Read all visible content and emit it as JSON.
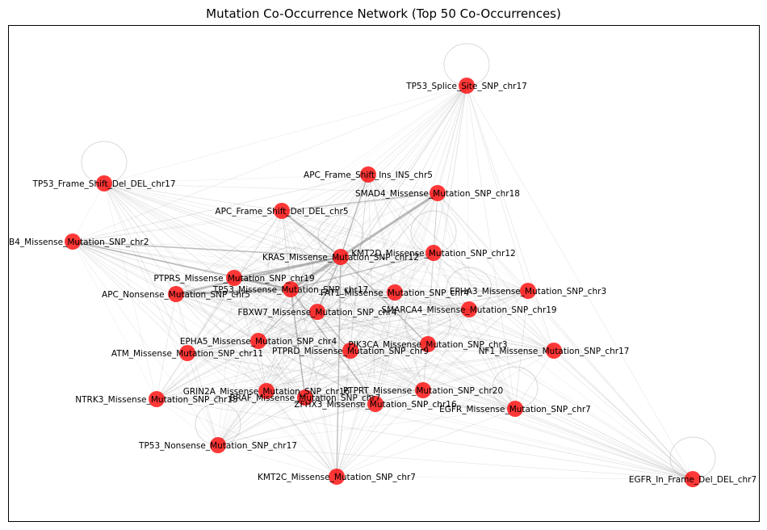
{
  "title": "Mutation Co-Occurrence Network (Top 50 Co-Occurrences)",
  "node_color": "#ff0000",
  "edge_color": "#8a8a8a",
  "nodes": [
    {
      "id": "TP53_Splice_Site_SNP_chr17",
      "label": "TP53_Splice_Site_SNP_chr17"
    },
    {
      "id": "TP53_Frame_Shift_Del_DEL_chr17",
      "label": "TP53_Frame_Shift_Del_DEL_chr17"
    },
    {
      "id": "APC_Frame_Shift_Ins_INS_chr5",
      "label": "APC_Frame_Shift_Ins_INS_chr5"
    },
    {
      "id": "SMAD4_Missense_Mutation_SNP_chr18",
      "label": "SMAD4_Missense_Mutation_SNP_chr18"
    },
    {
      "id": "APC_Frame_Shift_Del_DEL_chr5",
      "label": "APC_Frame_Shift_Del_DEL_chr5"
    },
    {
      "id": "B4_Missense_Mutation_SNP_chr2",
      "label": "B4_Missense_Mutation_SNP_chr2"
    },
    {
      "id": "KMT2D_Missense_Mutation_SNP_chr12",
      "label": "KMT2D_Missense_Mutation_SNP_chr12"
    },
    {
      "id": "KRAS_Missense_Mutation_SNP_chr12",
      "label": "KRAS_Missense_Mutation_SNP_chr12"
    },
    {
      "id": "PTPRS_Missense_Mutation_SNP_chr19",
      "label": "PTPRS_Missense_Mutation_SNP_chr19"
    },
    {
      "id": "TP53_Missense_Mutation_SNP_chr17",
      "label": "TP53_Missense_Mutation_SNP_chr17"
    },
    {
      "id": "APC_Nonsense_Mutation_SNP_chr5",
      "label": "APC_Nonsense_Mutation_SNP_chr5"
    },
    {
      "id": "FAT1_Missense_Mutation_SNP_chr4",
      "label": "FAT1_Missense_Mutation_SNP_chr4"
    },
    {
      "id": "EPHA3_Missense_Mutation_SNP_chr3",
      "label": "EPHA3_Missense_Mutation_SNP_chr3"
    },
    {
      "id": "FBXW7_Missense_Mutation_SNP_chr4",
      "label": "FBXW7_Missense_Mutation_SNP_chr4"
    },
    {
      "id": "SMARCA4_Missense_Mutation_SNP_chr19",
      "label": "SMARCA4_Missense_Mutation_SNP_chr19"
    },
    {
      "id": "EPHA5_Missense_Mutation_SNP_chr4",
      "label": "EPHA5_Missense_Mutation_SNP_chr4"
    },
    {
      "id": "PIK3CA_Missense_Mutation_SNP_chr3",
      "label": "PIK3CA_Missense_Mutation_SNP_chr3"
    },
    {
      "id": "ATM_Missense_Mutation_SNP_chr11",
      "label": "ATM_Missense_Mutation_SNP_chr11"
    },
    {
      "id": "PTPRD_Missense_Mutation_SNP_chr9",
      "label": "PTPRD_Missense_Mutation_SNP_chr9"
    },
    {
      "id": "NF1_Missense_Mutation_SNP_chr17",
      "label": "NF1_Missense_Mutation_SNP_chr17"
    },
    {
      "id": "PTPRT_Missense_Mutation_SNP_chr20",
      "label": "PTPRT_Missense_Mutation_SNP_chr20"
    },
    {
      "id": "GRIN2A_Missense_Mutation_SNP_chr16",
      "label": "GRIN2A_Missense_Mutation_SNP_chr16"
    },
    {
      "id": "NTRK3_Missense_Mutation_SNP_chr15",
      "label": "NTRK3_Missense_Mutation_SNP_chr15"
    },
    {
      "id": "BRAF_Missense_Mutation_SNP_chr7",
      "label": "BRAF_Missense_Mutation_SNP_chr7"
    },
    {
      "id": "ZFHX3_Missense_Mutation_SNP_chr16",
      "label": "ZFHX3_Missense_Mutation_SNP_chr16"
    },
    {
      "id": "EGFR_Missense_Mutation_SNP_chr7",
      "label": "EGFR_Missense_Mutation_SNP_chr7"
    },
    {
      "id": "TP53_Nonsense_Mutation_SNP_chr17",
      "label": "TP53_Nonsense_Mutation_SNP_chr17"
    },
    {
      "id": "KMT2C_Missense_Mutation_SNP_chr7",
      "label": "KMT2C_Missense_Mutation_SNP_chr7"
    },
    {
      "id": "EGFR_In_Frame_Del_DEL_chr7",
      "label": "EGFR_In_Frame_Del_DEL_chr7"
    }
  ],
  "self_loops": [
    "TP53_Splice_Site_SNP_chr17",
    "TP53_Frame_Shift_Del_DEL_chr17",
    "KMT2D_Missense_Mutation_SNP_chr12",
    "KRAS_Missense_Mutation_SNP_chr12",
    "TP53_Missense_Mutation_SNP_chr17",
    "PIK3CA_Missense_Mutation_SNP_chr3",
    "EGFR_Missense_Mutation_SNP_chr7",
    "TP53_Nonsense_Mutation_SNP_chr17",
    "EGFR_In_Frame_Del_DEL_chr7",
    "FBXW7_Missense_Mutation_SNP_chr4",
    "SMARCA4_Missense_Mutation_SNP_chr19"
  ],
  "strong_edges": [
    [
      "KRAS_Missense_Mutation_SNP_chr12",
      "TP53_Missense_Mutation_SNP_chr17",
      4.0
    ],
    [
      "KRAS_Missense_Mutation_SNP_chr12",
      "SMAD4_Missense_Mutation_SNP_chr18",
      3.0
    ],
    [
      "TP53_Missense_Mutation_SNP_chr17",
      "APC_Nonsense_Mutation_SNP_chr5",
      3.0
    ],
    [
      "KRAS_Missense_Mutation_SNP_chr12",
      "APC_Nonsense_Mutation_SNP_chr5",
      2.5
    ],
    [
      "TP53_Missense_Mutation_SNP_chr17",
      "PTPRS_Missense_Mutation_SNP_chr19",
      2.0
    ],
    [
      "KRAS_Missense_Mutation_SNP_chr12",
      "PTPRS_Missense_Mutation_SNP_chr19",
      2.0
    ],
    [
      "KRAS_Missense_Mutation_SNP_chr12",
      "APC_Frame_Shift_Del_DEL_chr5",
      2.0
    ],
    [
      "KRAS_Missense_Mutation_SNP_chr12",
      "FBXW7_Missense_Mutation_SNP_chr4",
      1.8
    ],
    [
      "TP53_Missense_Mutation_SNP_chr17",
      "B4_Missense_Mutation_SNP_chr2",
      1.6
    ],
    [
      "KRAS_Missense_Mutation_SNP_chr12",
      "B4_Missense_Mutation_SNP_chr2",
      1.6
    ],
    [
      "KRAS_Missense_Mutation_SNP_chr12",
      "APC_Frame_Shift_Ins_INS_chr5",
      1.5
    ],
    [
      "TP53_Missense_Mutation_SNP_chr17",
      "ZFHX3_Missense_Mutation_SNP_chr16",
      1.5
    ],
    [
      "KRAS_Missense_Mutation_SNP_chr12",
      "PIK3CA_Missense_Mutation_SNP_chr3",
      1.5
    ],
    [
      "TP53_Missense_Mutation_SNP_chr17",
      "BRAF_Missense_Mutation_SNP_chr7",
      1.5
    ],
    [
      "KRAS_Missense_Mutation_SNP_chr12",
      "KMT2C_Missense_Mutation_SNP_chr7",
      1.4
    ],
    [
      "TP53_Missense_Mutation_SNP_chr17",
      "KMT2D_Missense_Mutation_SNP_chr12",
      1.4
    ],
    [
      "SMAD4_Missense_Mutation_SNP_chr18",
      "APC_Frame_Shift_Del_DEL_chr5",
      1.3
    ],
    [
      "FBXW7_Missense_Mutation_SNP_chr4",
      "PTPRD_Missense_Mutation_SNP_chr9",
      1.2
    ],
    [
      "KRAS_Missense_Mutation_SNP_chr12",
      "EPHA5_Missense_Mutation_SNP_chr4",
      1.2
    ]
  ]
}
